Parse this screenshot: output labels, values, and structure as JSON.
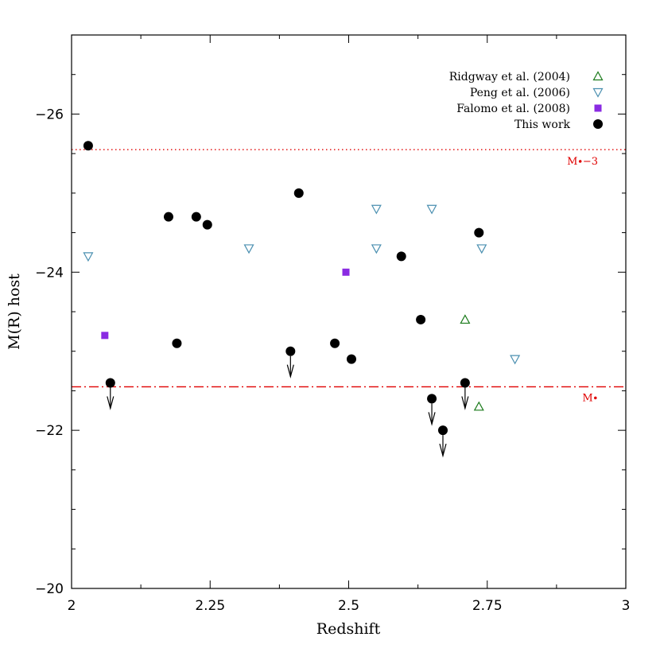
{
  "chart_data": {
    "type": "scatter",
    "xlabel": "Redshift",
    "ylabel": "M(R) host",
    "xlim": [
      2,
      3
    ],
    "ylim": [
      -27,
      -20
    ],
    "x_ticks": [
      2,
      2.25,
      2.5,
      2.75,
      3
    ],
    "x_tick_labels": [
      "2",
      "2.25",
      "2.5",
      "2.75",
      "3"
    ],
    "y_ticks": [
      -26,
      -24,
      -22,
      -20
    ],
    "y_tick_labels": [
      "−26",
      "−24",
      "−22",
      "−20"
    ],
    "x_minor_step": 0.125,
    "y_minor_step": 0.5,
    "legend_position": "top-right",
    "series": [
      {
        "name": "Ridgway et al. (2004)",
        "marker": "triangle-up-open",
        "color": "#1a7a1a",
        "points": [
          [
            2.71,
            -23.4
          ],
          [
            2.735,
            -22.3
          ]
        ]
      },
      {
        "name": "Peng et al. (2006)",
        "marker": "triangle-down-open",
        "color": "#4a8fb0",
        "points": [
          [
            2.03,
            -24.2
          ],
          [
            2.32,
            -24.3
          ],
          [
            2.55,
            -24.8
          ],
          [
            2.55,
            -24.3
          ],
          [
            2.65,
            -24.8
          ],
          [
            2.74,
            -24.3
          ],
          [
            2.8,
            -22.9
          ]
        ]
      },
      {
        "name": "Falomo et al. (2008)",
        "marker": "square-filled",
        "color": "#8a2be2",
        "points": [
          [
            2.06,
            -23.2
          ],
          [
            2.495,
            -24.0
          ]
        ]
      },
      {
        "name": "This work",
        "marker": "circle-filled",
        "color": "#000000",
        "points": [
          [
            2.03,
            -25.6
          ],
          [
            2.07,
            -22.6
          ],
          [
            2.175,
            -24.7
          ],
          [
            2.19,
            -23.1
          ],
          [
            2.225,
            -24.7
          ],
          [
            2.245,
            -24.6
          ],
          [
            2.395,
            -23.0
          ],
          [
            2.41,
            -25.0
          ],
          [
            2.475,
            -23.1
          ],
          [
            2.505,
            -22.9
          ],
          [
            2.595,
            -24.2
          ],
          [
            2.63,
            -23.4
          ],
          [
            2.65,
            -22.4
          ],
          [
            2.67,
            -22.0
          ],
          [
            2.71,
            -22.6
          ],
          [
            2.735,
            -24.5
          ]
        ]
      }
    ],
    "upper_limits": [
      [
        2.07,
        -22.6
      ],
      [
        2.395,
        -23.0
      ],
      [
        2.65,
        -22.4
      ],
      [
        2.67,
        -22.0
      ],
      [
        2.71,
        -22.6
      ]
    ],
    "reference_lines": [
      {
        "label": "M∙−3",
        "y": -25.55,
        "style": "dotted",
        "color": "#e00000"
      },
      {
        "label": "M∙",
        "y": -22.55,
        "style": "dash-dot",
        "color": "#e00000"
      }
    ]
  }
}
